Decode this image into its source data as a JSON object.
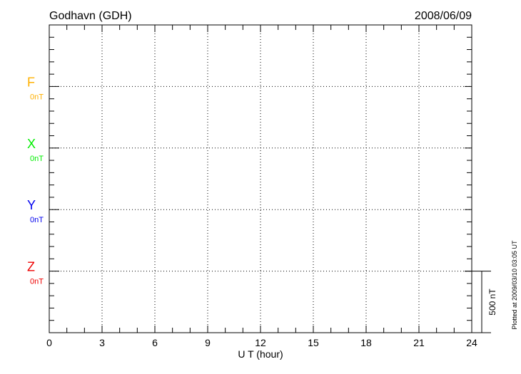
{
  "chart_data": {
    "type": "line",
    "title": "Godhavn (GDH)",
    "date": "2008/06/09",
    "xlabel": "U T (hour)",
    "xlim": [
      0,
      24
    ],
    "xticks": [
      "0",
      "3",
      "6",
      "9",
      "12",
      "15",
      "18",
      "21",
      "24"
    ],
    "grid": true,
    "series": [
      {
        "name": "F",
        "baseline_label": "0nT",
        "color": "#ffb000",
        "values": []
      },
      {
        "name": "X",
        "baseline_label": "0nT",
        "color": "#00ee00",
        "values": []
      },
      {
        "name": "Y",
        "baseline_label": "0nT",
        "color": "#0000ee",
        "values": []
      },
      {
        "name": "Z",
        "baseline_label": "0nT",
        "color": "#ee0000",
        "values": []
      }
    ],
    "scale_bar_label": "500 nT",
    "footnote": "Plotted at 2009/03/10 03:05 UT"
  }
}
